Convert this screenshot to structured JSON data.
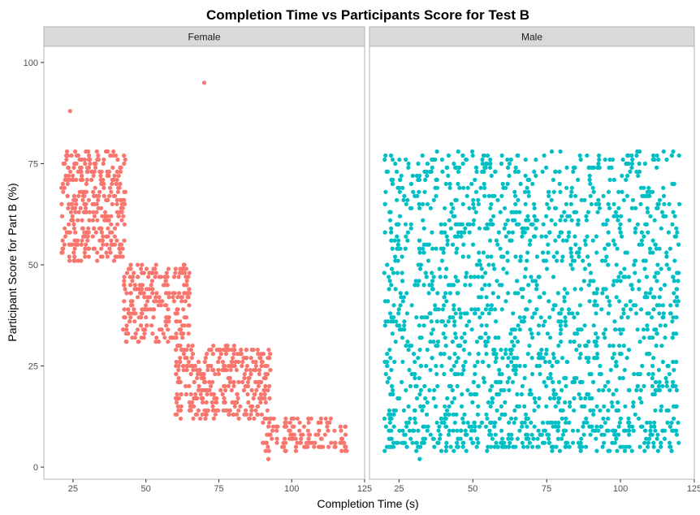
{
  "chart_data": {
    "type": "scatter",
    "title": "Completion Time vs Participants Score for Test B",
    "xlabel": "Completion Time (s)",
    "ylabel": "Participant Score for Part B (%)",
    "xlim": [
      15,
      125
    ],
    "ylim": [
      -3,
      104
    ],
    "xticks": [
      25,
      50,
      75,
      100,
      125
    ],
    "yticks": [
      0,
      25,
      50,
      75,
      100
    ],
    "grid": false,
    "legend": "none",
    "facets": [
      {
        "name": "Female",
        "color": "#F8766D",
        "clusters": [
          {
            "x": [
              21,
              43
            ],
            "y": [
              51,
              78
            ]
          },
          {
            "x": [
              42,
              65
            ],
            "y": [
              31,
              50
            ]
          },
          {
            "x": [
              60,
              93
            ],
            "y": [
              12,
              30
            ]
          },
          {
            "x": [
              90,
              119
            ],
            "y": [
              4,
              12
            ]
          }
        ],
        "outliers": [
          {
            "x": 24,
            "y": 88
          },
          {
            "x": 70,
            "y": 95
          },
          {
            "x": 92,
            "y": 2
          }
        ]
      },
      {
        "name": "Male",
        "color": "#00BFC4",
        "clusters": [
          {
            "x": [
              20,
              120
            ],
            "y": [
              4,
              78
            ]
          },
          {
            "x": [
              20,
              120
            ],
            "y": [
              4,
              12
            ]
          }
        ],
        "outliers": [
          {
            "x": 32,
            "y": 2
          }
        ]
      }
    ]
  }
}
